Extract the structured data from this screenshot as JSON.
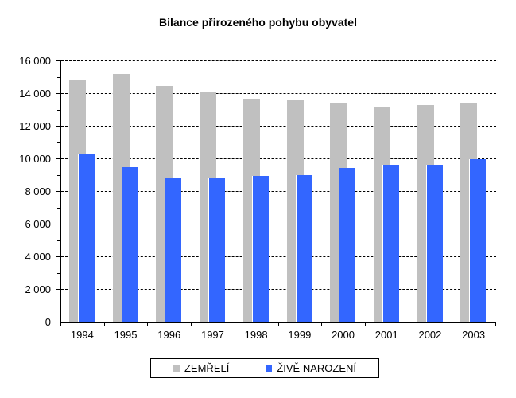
{
  "title": "Bilance přirozeného pohybu obyvatel",
  "chart_data": {
    "type": "bar",
    "title": "Bilance přirozeného pohybu obyvatel",
    "categories": [
      "1994",
      "1995",
      "1996",
      "1997",
      "1998",
      "1999",
      "2000",
      "2001",
      "2002",
      "2003"
    ],
    "series": [
      {
        "name": "ZEMŘELÍ",
        "color": "#C0C0C0",
        "values": [
          14850,
          15150,
          14450,
          14050,
          13650,
          13550,
          13350,
          13150,
          13250,
          13400
        ]
      },
      {
        "name": "ŽIVĚ NAROZENÍ",
        "color": "#3366FF",
        "values": [
          10300,
          9450,
          8800,
          8850,
          8950,
          9000,
          9400,
          9600,
          9600,
          9950
        ]
      }
    ],
    "ylim": [
      0,
      16000
    ],
    "ytick_step": 2000,
    "ytick_labels": [
      "0",
      "2 000",
      "4 000",
      "6 000",
      "8 000",
      "10 000",
      "12 000",
      "14 000",
      "16 000"
    ],
    "minor_tick_step": 1000,
    "grid": "horizontal dashed lines every 2000",
    "bar_style": "overlapped, gray behind blue",
    "legend_position": "bottom",
    "text_color": "#000000",
    "background_color": "#FFFFFF"
  }
}
